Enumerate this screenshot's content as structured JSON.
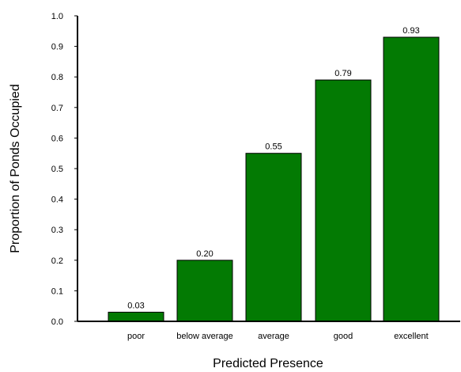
{
  "chart_data": {
    "type": "bar",
    "categories": [
      "poor",
      "below average",
      "average",
      "good",
      "excellent"
    ],
    "values": [
      0.03,
      0.2,
      0.55,
      0.79,
      0.93
    ],
    "value_labels": [
      "0.03",
      "0.20",
      "0.55",
      "0.79",
      "0.93"
    ],
    "title": "",
    "xlabel": "Predicted Presence",
    "ylabel": "Proportion of Ponds Occupied",
    "ylim": [
      0.0,
      1.0
    ],
    "yticks": [
      "0.0",
      "0.1",
      "0.2",
      "0.3",
      "0.4",
      "0.5",
      "0.6",
      "0.7",
      "0.8",
      "0.9",
      "1.0"
    ],
    "grid": false,
    "legend": "none",
    "bar_color": "#037a03",
    "bar_edge_color": "#000000"
  }
}
